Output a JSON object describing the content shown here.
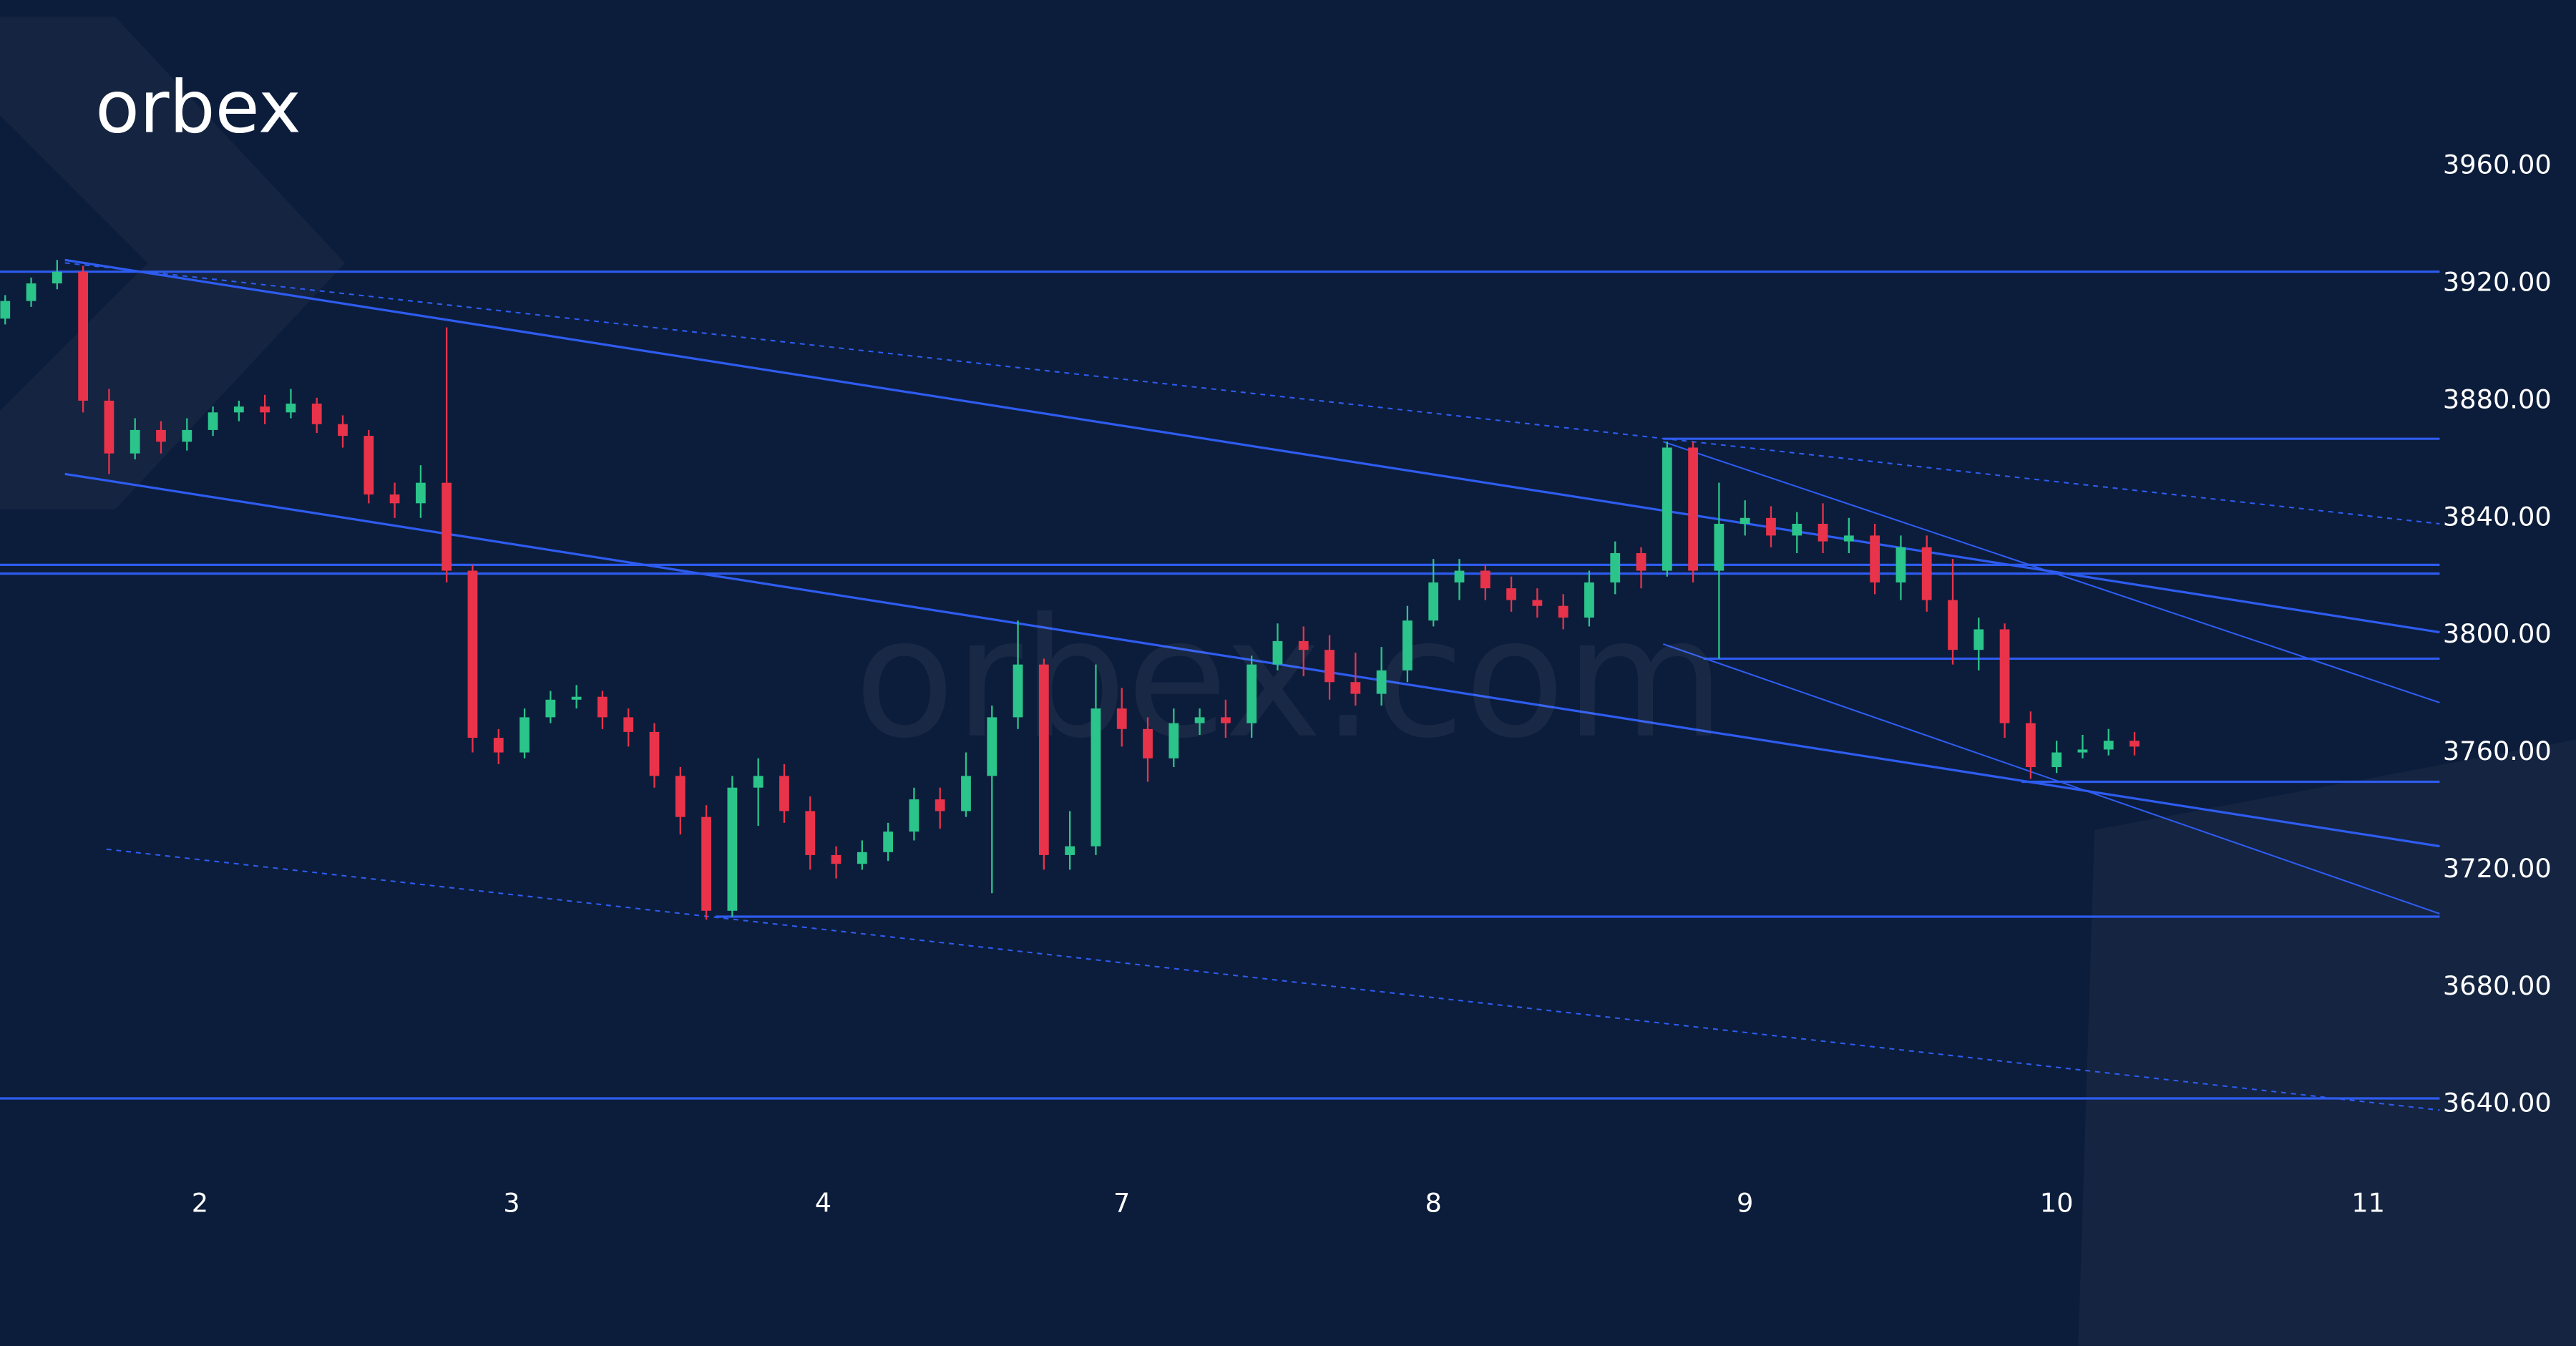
{
  "chart_data": {
    "type": "candlestick",
    "logo": "orbex",
    "watermark": "orbex.com",
    "colors": {
      "up": "#2bc48a",
      "down": "#e8334a",
      "line": "#2e5cf0",
      "background": "#0c1d3b"
    },
    "xlim": [
      -15.4,
      172.5
    ],
    "ylim": [
      3621.5,
      4016.6
    ],
    "xticks": [
      {
        "value": 0,
        "label": "2"
      },
      {
        "value": 24,
        "label": "3"
      },
      {
        "value": 48,
        "label": "4"
      },
      {
        "value": 71,
        "label": "7"
      },
      {
        "value": 95,
        "label": "8"
      },
      {
        "value": 119,
        "label": "9"
      },
      {
        "value": 143,
        "label": "10"
      },
      {
        "value": 167,
        "label": "11"
      }
    ],
    "yticks": [
      {
        "value": 3640,
        "label": "3640.00"
      },
      {
        "value": 3680,
        "label": "3680.00"
      },
      {
        "value": 3720,
        "label": "3720.00"
      },
      {
        "value": 3760,
        "label": "3760.00"
      },
      {
        "value": 3800,
        "label": "3800.00"
      },
      {
        "value": 3840,
        "label": "3840.00"
      },
      {
        "value": 3880,
        "label": "3880.00"
      },
      {
        "value": 3920,
        "label": "3920.00"
      },
      {
        "value": 3960,
        "label": "3960.00"
      }
    ],
    "x": [
      -15,
      -13,
      -11,
      -9,
      -7,
      -5,
      -3,
      -1,
      1,
      3,
      5,
      7,
      9,
      11,
      13,
      15,
      17,
      19,
      21,
      23,
      25,
      27,
      29,
      31,
      33,
      35,
      37,
      39,
      41,
      43,
      45,
      47,
      49,
      51,
      53,
      55,
      57,
      59,
      61,
      63,
      65,
      67,
      69,
      71,
      73,
      75,
      77,
      79,
      81,
      83,
      85,
      87,
      89,
      91,
      93,
      95,
      97,
      99,
      101,
      103,
      105,
      107,
      109,
      111,
      113,
      115,
      117,
      119,
      121,
      123,
      125,
      127,
      129,
      131,
      133,
      135,
      137,
      139,
      141,
      143,
      145,
      147,
      149
    ],
    "open": [
      3908,
      3914,
      3920,
      3924,
      3880,
      3862,
      3870,
      3866,
      3870,
      3876,
      3878,
      3876,
      3879,
      3872,
      3868,
      3848,
      3845,
      3852,
      3822,
      3765,
      3760,
      3772,
      3778,
      3779,
      3772,
      3767,
      3752,
      3738,
      3706,
      3748,
      3752,
      3740,
      3725,
      3722,
      3726,
      3733,
      3744,
      3740,
      3752,
      3772,
      3790,
      3725,
      3728,
      3775,
      3768,
      3758,
      3770,
      3772,
      3770,
      3790,
      3798,
      3795,
      3784,
      3780,
      3788,
      3805,
      3818,
      3822,
      3816,
      3812,
      3810,
      3806,
      3818,
      3828,
      3822,
      3864,
      3822,
      3838,
      3840,
      3834,
      3838,
      3832,
      3834,
      3818,
      3830,
      3812,
      3795,
      3802,
      3770,
      3755,
      3760,
      3761,
      3764
    ],
    "high": [
      3916,
      3922,
      3928,
      3926,
      3884,
      3874,
      3873,
      3874,
      3878,
      3880,
      3882,
      3884,
      3881,
      3875,
      3870,
      3852,
      3858,
      3905,
      3824,
      3768,
      3775,
      3781,
      3783,
      3781,
      3775,
      3770,
      3755,
      3742,
      3752,
      3758,
      3756,
      3745,
      3728,
      3730,
      3736,
      3748,
      3748,
      3760,
      3776,
      3805,
      3792,
      3740,
      3790,
      3782,
      3772,
      3775,
      3775,
      3778,
      3793,
      3804,
      3803,
      3800,
      3794,
      3796,
      3810,
      3826,
      3826,
      3824,
      3820,
      3816,
      3814,
      3822,
      3832,
      3830,
      3866,
      3866,
      3852,
      3846,
      3844,
      3842,
      3845,
      3840,
      3838,
      3834,
      3834,
      3826,
      3806,
      3804,
      3774,
      3764,
      3766,
      3768,
      3767
    ],
    "low": [
      3906,
      3912,
      3918,
      3876,
      3855,
      3860,
      3862,
      3863,
      3868,
      3873,
      3872,
      3874,
      3869,
      3864,
      3845,
      3840,
      3840,
      3818,
      3760,
      3756,
      3758,
      3770,
      3775,
      3768,
      3762,
      3748,
      3732,
      3703,
      3704,
      3735,
      3736,
      3720,
      3717,
      3720,
      3723,
      3730,
      3734,
      3738,
      3712,
      3768,
      3720,
      3720,
      3725,
      3762,
      3750,
      3755,
      3766,
      3765,
      3765,
      3788,
      3786,
      3778,
      3776,
      3776,
      3784,
      3803,
      3812,
      3812,
      3808,
      3806,
      3802,
      3803,
      3814,
      3816,
      3820,
      3818,
      3792,
      3834,
      3830,
      3828,
      3828,
      3828,
      3814,
      3812,
      3808,
      3790,
      3788,
      3765,
      3751,
      3753,
      3758,
      3759,
      3759
    ],
    "close": [
      3914,
      3920,
      3924,
      3880,
      3862,
      3870,
      3866,
      3870,
      3876,
      3878,
      3876,
      3879,
      3872,
      3868,
      3848,
      3845,
      3852,
      3822,
      3765,
      3760,
      3772,
      3778,
      3779,
      3772,
      3767,
      3752,
      3738,
      3706,
      3748,
      3752,
      3740,
      3725,
      3722,
      3726,
      3733,
      3744,
      3740,
      3752,
      3772,
      3790,
      3725,
      3728,
      3775,
      3768,
      3758,
      3770,
      3772,
      3770,
      3790,
      3798,
      3795,
      3784,
      3780,
      3788,
      3805,
      3818,
      3822,
      3816,
      3812,
      3810,
      3806,
      3818,
      3828,
      3822,
      3864,
      3822,
      3838,
      3840,
      3834,
      3838,
      3832,
      3834,
      3818,
      3830,
      3812,
      3795,
      3802,
      3770,
      3755,
      3760,
      3761,
      3764,
      3762
    ],
    "lines": [
      {
        "x": [
          -15.4,
          172.5
        ],
        "y": [
          3924,
          3924
        ],
        "style": "solid"
      },
      {
        "x": [
          -15.4,
          172.5
        ],
        "y": [
          3824,
          3824
        ],
        "style": "solid"
      },
      {
        "x": [
          -15.4,
          172.5
        ],
        "y": [
          3821,
          3821
        ],
        "style": "solid"
      },
      {
        "x": [
          -15.4,
          172.5
        ],
        "y": [
          3642,
          3642
        ],
        "style": "solid"
      },
      {
        "x": [
          112.7,
          172.5
        ],
        "y": [
          3867,
          3867
        ],
        "style": "solid"
      },
      {
        "x": [
          115.8,
          172.5
        ],
        "y": [
          3792,
          3792
        ],
        "style": "solid"
      },
      {
        "x": [
          140.3,
          172.5
        ],
        "y": [
          3750,
          3750
        ],
        "style": "solid"
      },
      {
        "x": [
          39.7,
          172.5
        ],
        "y": [
          3704,
          3704
        ],
        "style": "solid"
      },
      {
        "x": [
          -10.4,
          172.5
        ],
        "y": [
          3928,
          3801
        ],
        "style": "solid"
      },
      {
        "x": [
          -10.4,
          172.5
        ],
        "y": [
          3855,
          3728
        ],
        "style": "solid"
      },
      {
        "x": [
          -10.4,
          172.5
        ],
        "y": [
          3927,
          3838
        ],
        "style": "dashed"
      },
      {
        "x": [
          -7.2,
          172.5
        ],
        "y": [
          3727,
          3638
        ],
        "style": "dashed"
      },
      {
        "x": [
          112.7,
          172.5
        ],
        "y": [
          3866,
          3777
        ],
        "style": "thin"
      },
      {
        "x": [
          112.7,
          172.5
        ],
        "y": [
          3797,
          3705
        ],
        "style": "thin"
      }
    ]
  }
}
